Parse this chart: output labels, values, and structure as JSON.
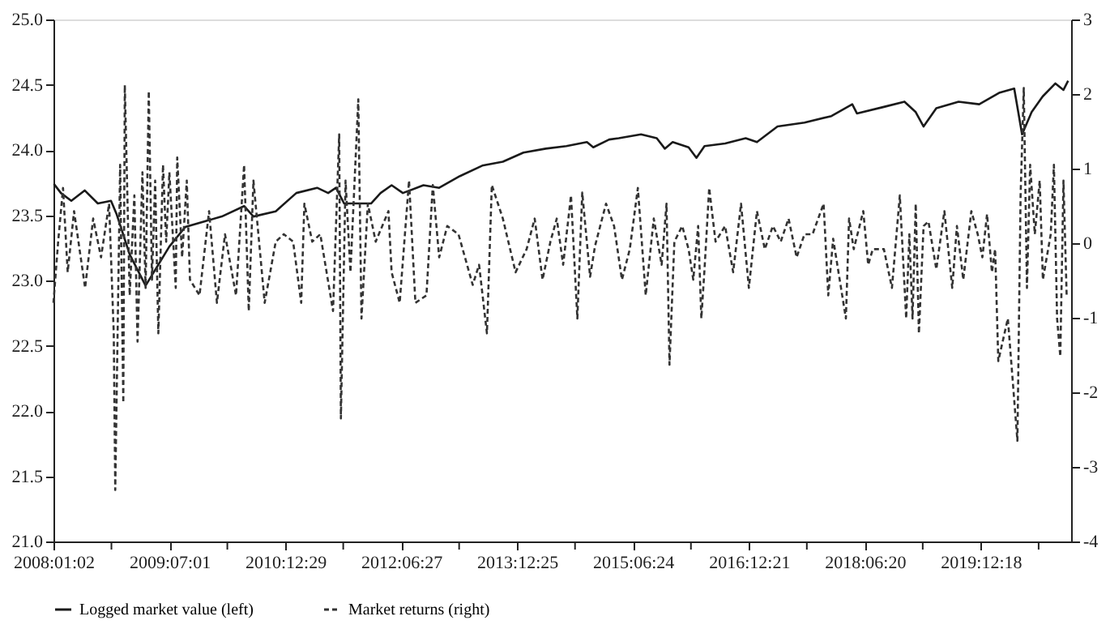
{
  "chart_data": {
    "type": "line",
    "legend": "bottom",
    "grid": false,
    "marker": "none",
    "xlim": [
      "2008-01-02",
      "2021-02-16"
    ],
    "xticks": [
      {
        "value": "2008-01-02",
        "label": "2008:01:02"
      },
      {
        "value": "2008-10-01",
        "label": null
      },
      {
        "value": "2009-07-01",
        "label": "2009:07:01"
      },
      {
        "value": "2010-03-31",
        "label": null
      },
      {
        "value": "2010-12-29",
        "label": "2010:12:29"
      },
      {
        "value": "2011-09-28",
        "label": null
      },
      {
        "value": "2012-06-27",
        "label": "2012:06:27"
      },
      {
        "value": "2013-03-27",
        "label": null
      },
      {
        "value": "2013-12-25",
        "label": "2013:12:25"
      },
      {
        "value": "2014-09-24",
        "label": null
      },
      {
        "value": "2015-06-24",
        "label": "2015:06:24"
      },
      {
        "value": "2016-03-23",
        "label": null
      },
      {
        "value": "2016-12-21",
        "label": "2016:12:21"
      },
      {
        "value": "2017-09-20",
        "label": null
      },
      {
        "value": "2018-06-20",
        "label": "2018:06:20"
      },
      {
        "value": "2019-03-20",
        "label": null
      },
      {
        "value": "2019-12-18",
        "label": "2019:12:18"
      },
      {
        "value": "2020-09-16",
        "label": null
      }
    ],
    "ylim": [
      21.0,
      25.0
    ],
    "yticks": [
      {
        "value": 21.0,
        "label": "21.0"
      },
      {
        "value": 21.5,
        "label": "21.5"
      },
      {
        "value": 22.0,
        "label": "22.0"
      },
      {
        "value": 22.5,
        "label": "22.5"
      },
      {
        "value": 23.0,
        "label": "23.0"
      },
      {
        "value": 23.5,
        "label": "23.5"
      },
      {
        "value": 24.0,
        "label": "24.0"
      },
      {
        "value": 24.5,
        "label": "24.5"
      },
      {
        "value": 25.0,
        "label": "25.0"
      }
    ],
    "y2lim": [
      -4,
      3
    ],
    "y2ticks": [
      {
        "value": -4,
        "label": "-4"
      },
      {
        "value": -3,
        "label": "-3"
      },
      {
        "value": -2,
        "label": "-2"
      },
      {
        "value": -1,
        "label": "-1"
      },
      {
        "value": 0,
        "label": "0"
      },
      {
        "value": 1,
        "label": "1"
      },
      {
        "value": 2,
        "label": "2"
      },
      {
        "value": 3,
        "label": "3"
      }
    ],
    "series": [
      {
        "name": "Logged market value (left)",
        "color": "#1a1a1a",
        "line_style": "solid",
        "axis": "y",
        "x": [
          "2008-01-04",
          "2008-02-06",
          "2008-03-26",
          "2008-05-28",
          "2008-07-29",
          "2008-09-29",
          "2008-10-25",
          "2008-12-26",
          "2009-03-11",
          "2009-07-01",
          "2009-09-14",
          "2010-03-05",
          "2010-06-18",
          "2010-08-01",
          "2010-11-14",
          "2011-02-19",
          "2011-05-28",
          "2011-07-19",
          "2011-08-25",
          "2011-10-02",
          "2012-02-06",
          "2012-03-22",
          "2012-05-13",
          "2012-07-05",
          "2012-10-10",
          "2012-12-23",
          "2013-03-31",
          "2013-07-14",
          "2013-10-19",
          "2014-01-24",
          "2014-05-09",
          "2014-08-14",
          "2014-11-19",
          "2014-12-19",
          "2015-03-04",
          "2015-04-18",
          "2015-08-01",
          "2015-10-14",
          "2015-11-21",
          "2015-12-28",
          "2016-03-12",
          "2016-04-18",
          "2016-05-26",
          "2016-08-31",
          "2016-12-06",
          "2017-01-28",
          "2017-05-05",
          "2017-09-09",
          "2018-01-14",
          "2018-04-22",
          "2018-05-14",
          "2018-09-18",
          "2018-12-24",
          "2019-02-15",
          "2019-03-24",
          "2019-05-23",
          "2019-09-05",
          "2019-12-11",
          "2020-03-17",
          "2020-05-24",
          "2020-06-30",
          "2020-08-14",
          "2020-10-05",
          "2020-12-04",
          "2021-01-11",
          "2021-02-02"
        ],
        "values": [
          23.74,
          23.67,
          23.61,
          23.69,
          23.59,
          23.61,
          23.51,
          23.2,
          22.96,
          23.26,
          23.41,
          23.49,
          23.57,
          23.49,
          23.53,
          23.67,
          23.71,
          23.67,
          23.71,
          23.59,
          23.59,
          23.67,
          23.73,
          23.67,
          23.73,
          23.71,
          23.8,
          23.88,
          23.91,
          23.98,
          24.01,
          24.03,
          24.06,
          24.02,
          24.08,
          24.09,
          24.12,
          24.09,
          24.01,
          24.06,
          24.02,
          23.94,
          24.03,
          24.05,
          24.09,
          24.06,
          24.18,
          24.21,
          24.26,
          24.35,
          24.28,
          24.33,
          24.37,
          24.29,
          24.18,
          24.32,
          24.37,
          24.35,
          24.44,
          24.47,
          24.12,
          24.29,
          24.41,
          24.51,
          24.46,
          24.53
        ]
      },
      {
        "name": "Market returns (right)",
        "color": "#333333",
        "line_style": "dashed",
        "axis": "y2",
        "x": [
          "2008-01-02",
          "2008-01-24",
          "2008-02-16",
          "2008-03-09",
          "2008-04-08",
          "2008-05-30",
          "2008-07-07",
          "2008-08-13",
          "2008-09-20",
          "2008-10-12",
          "2008-10-19",
          "2008-11-11",
          "2008-11-26",
          "2008-12-03",
          "2008-12-26",
          "2009-01-17",
          "2009-02-01",
          "2009-02-24",
          "2009-03-11",
          "2009-03-26",
          "2009-04-10",
          "2009-04-25",
          "2009-05-10",
          "2009-06-01",
          "2009-06-16",
          "2009-07-01",
          "2009-07-31",
          "2009-08-07",
          "2009-08-30",
          "2009-09-21",
          "2009-10-06",
          "2009-11-20",
          "2010-01-04",
          "2010-02-10",
          "2010-03-20",
          "2010-05-11",
          "2010-06-18",
          "2010-07-10",
          "2010-08-01",
          "2010-09-23",
          "2010-11-14",
          "2010-12-22",
          "2011-02-04",
          "2011-03-14",
          "2011-03-29",
          "2011-05-05",
          "2011-06-12",
          "2011-08-11",
          "2011-09-09",
          "2011-09-17",
          "2011-10-09",
          "2011-11-01",
          "2011-12-08",
          "2011-12-23",
          "2012-01-22",
          "2012-02-28",
          "2012-04-28",
          "2012-05-13",
          "2012-06-20",
          "2012-08-03",
          "2012-09-02",
          "2012-10-24",
          "2012-11-23",
          "2012-12-23",
          "2013-01-30",
          "2013-03-24",
          "2013-05-30",
          "2013-06-29",
          "2013-08-05",
          "2013-08-28",
          "2013-10-19",
          "2013-12-18",
          "2014-02-08",
          "2014-03-18",
          "2014-04-24",
          "2014-05-31",
          "2014-06-30",
          "2014-07-30",
          "2014-09-05",
          "2014-10-05",
          "2014-10-28",
          "2014-12-04",
          "2014-12-27",
          "2015-02-17",
          "2015-03-27",
          "2015-05-03",
          "2015-06-09",
          "2015-07-17",
          "2015-08-23",
          "2015-09-30",
          "2015-11-06",
          "2015-11-29",
          "2015-12-13",
          "2016-01-05",
          "2016-02-11",
          "2016-03-12",
          "2016-04-03",
          "2016-04-26",
          "2016-05-11",
          "2016-05-26",
          "2016-06-17",
          "2016-07-17",
          "2016-08-31",
          "2016-10-08",
          "2016-11-14",
          "2016-12-21",
          "2017-01-28",
          "2017-03-06",
          "2017-04-13",
          "2017-05-20",
          "2017-06-26",
          "2017-08-03",
          "2017-09-09",
          "2017-10-17",
          "2017-12-08",
          "2017-12-30",
          "2018-01-22",
          "2018-03-23",
          "2018-04-07",
          "2018-04-29",
          "2018-06-13",
          "2018-07-06",
          "2018-07-28",
          "2018-09-18",
          "2018-10-26",
          "2018-12-02",
          "2019-01-01",
          "2019-01-16",
          "2019-01-31",
          "2019-02-15",
          "2019-03-02",
          "2019-03-24",
          "2019-04-16",
          "2019-05-23",
          "2019-06-30",
          "2019-08-06",
          "2019-08-28",
          "2019-09-27",
          "2019-11-04",
          "2019-12-04",
          "2019-12-26",
          "2020-01-17",
          "2020-02-09",
          "2020-02-24",
          "2020-03-10",
          "2020-04-24",
          "2020-06-08",
          "2020-06-23",
          "2020-07-08",
          "2020-07-23",
          "2020-08-07",
          "2020-08-29",
          "2020-09-21",
          "2020-10-06",
          "2020-11-12",
          "2020-11-27",
          "2020-12-12",
          "2020-12-27",
          "2021-01-11",
          "2021-01-26"
        ],
        "values": [
          -0.8,
          0.02,
          0.74,
          -0.39,
          0.43,
          -0.6,
          0.33,
          -0.19,
          0.53,
          -1.21,
          -3.31,
          1.05,
          -2.14,
          2.12,
          -0.7,
          0.64,
          -1.32,
          0.95,
          -0.6,
          2.04,
          -0.49,
          0.84,
          -1.21,
          1.05,
          0.02,
          0.95,
          -0.6,
          1.15,
          -0.19,
          0.84,
          -0.49,
          -0.7,
          0.43,
          -0.8,
          0.12,
          -0.7,
          1.05,
          -0.91,
          0.84,
          -0.8,
          0.02,
          0.12,
          0.02,
          -0.8,
          0.53,
          0.02,
          0.12,
          -0.91,
          1.46,
          -2.35,
          0.84,
          -0.39,
          1.93,
          -1.01,
          0.53,
          0.02,
          0.43,
          -0.39,
          -0.8,
          0.84,
          -0.8,
          -0.7,
          0.78,
          -0.19,
          0.23,
          0.12,
          -0.56,
          -0.29,
          -1.21,
          0.78,
          0.33,
          -0.39,
          -0.08,
          0.33,
          -0.49,
          0.02,
          0.33,
          -0.29,
          0.64,
          -1.01,
          0.68,
          -0.45,
          -0.04,
          0.53,
          0.23,
          -0.49,
          -0.08,
          0.74,
          -0.7,
          0.33,
          -0.29,
          0.53,
          -1.63,
          0.02,
          0.23,
          -0.08,
          -0.49,
          0.23,
          -1.01,
          -0.35,
          0.74,
          0.02,
          0.23,
          -0.39,
          0.53,
          -0.6,
          0.43,
          -0.08,
          0.23,
          0.02,
          0.33,
          -0.19,
          0.12,
          0.12,
          0.53,
          -0.7,
          0.06,
          -1.01,
          0.33,
          -0.08,
          0.43,
          -0.29,
          -0.08,
          -0.08,
          -0.6,
          0.64,
          -1.01,
          0.12,
          -1.01,
          0.53,
          -1.21,
          0.23,
          0.29,
          -0.35,
          0.43,
          -0.6,
          0.23,
          -0.49,
          0.43,
          0.12,
          -0.19,
          0.39,
          -0.39,
          -0.08,
          -1.58,
          -1.01,
          -2.65,
          0.64,
          2.08,
          -0.6,
          1.05,
          0.12,
          0.84,
          -0.49,
          0.12,
          1.05,
          -1.01,
          -1.52,
          0.84,
          -0.7
        ]
      }
    ]
  }
}
